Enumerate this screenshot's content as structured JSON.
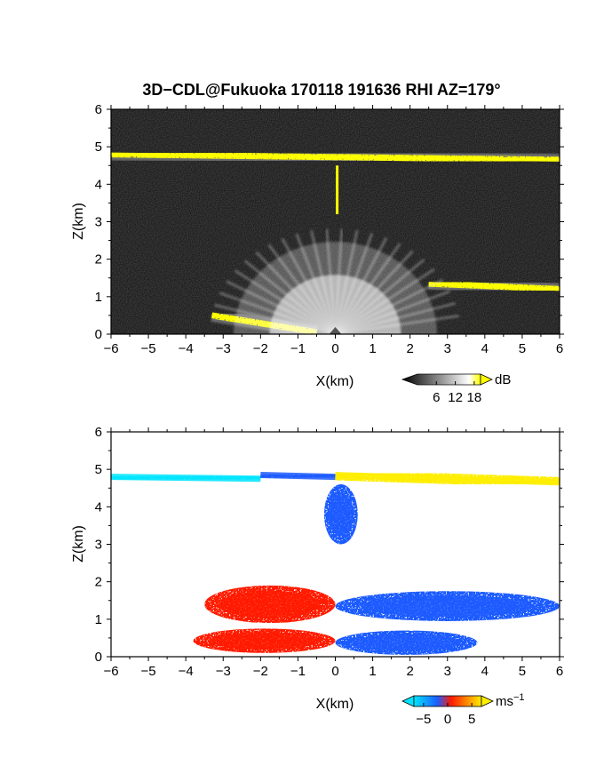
{
  "figure": {
    "title": "3D−CDL@Fukuoka 170118 191636 RHI AZ=179°"
  },
  "chart_data": [
    {
      "type": "heatmap",
      "name": "backscatter-panel",
      "xlabel": "X(km)",
      "ylabel": "Z(km)",
      "xlim": [
        -6,
        6
      ],
      "ylim": [
        0,
        6
      ],
      "xticks": [
        "−6",
        "−5",
        "−4",
        "−3",
        "−2",
        "−1",
        "0",
        "1",
        "2",
        "3",
        "4",
        "5",
        "6"
      ],
      "yticks": [
        "0",
        "1",
        "2",
        "3",
        "4",
        "5",
        "6"
      ],
      "colorbar": {
        "unit": "dB",
        "ticks": [
          "6",
          "12",
          "18"
        ],
        "tick_values": [
          6,
          12,
          18
        ],
        "range": [
          0,
          20
        ],
        "colors": [
          "#000000",
          "#ffffff",
          "#ffff00"
        ]
      },
      "features": [
        {
          "kind": "layer",
          "x": [
            -6,
            6
          ],
          "z": [
            4.8,
            4.65
          ],
          "value_dB": 18
        },
        {
          "kind": "layer",
          "x": [
            2.5,
            6
          ],
          "z": [
            1.35,
            1.2
          ],
          "value_dB": 18
        },
        {
          "kind": "layer",
          "x": [
            -3.3,
            -0.5
          ],
          "z": [
            0.5,
            0.05
          ],
          "value_dB": 18
        },
        {
          "kind": "column",
          "x": 0.05,
          "z": [
            3.2,
            4.5
          ],
          "value_dB": 18
        },
        {
          "kind": "fan",
          "origin": [
            0,
            0
          ],
          "radius_km": 3.2,
          "value_dB": 12
        }
      ]
    },
    {
      "type": "heatmap",
      "name": "velocity-panel",
      "xlabel": "X(km)",
      "ylabel": "Z(km)",
      "xlim": [
        -6,
        6
      ],
      "ylim": [
        0,
        6
      ],
      "xticks": [
        "−6",
        "−5",
        "−4",
        "−3",
        "−2",
        "−1",
        "0",
        "1",
        "2",
        "3",
        "4",
        "5",
        "6"
      ],
      "yticks": [
        "0",
        "1",
        "2",
        "3",
        "4",
        "5",
        "6"
      ],
      "colorbar": {
        "unit": "ms",
        "unit_exponent": "−1",
        "ticks": [
          "−5",
          "0",
          "5"
        ],
        "tick_values": [
          -5,
          0,
          5
        ],
        "range": [
          -7,
          7
        ],
        "colors": [
          "#00e5ff",
          "#1e5bff",
          "#ff1a00",
          "#ffee00"
        ]
      },
      "features": [
        {
          "kind": "layer",
          "x": [
            -6,
            -2
          ],
          "z": [
            4.8,
            4.75
          ],
          "velocity": -4.5
        },
        {
          "kind": "layer",
          "x": [
            -2,
            0
          ],
          "z": [
            4.85,
            4.8
          ],
          "velocity": -2
        },
        {
          "kind": "layer",
          "x": [
            0,
            6
          ],
          "z": [
            4.85,
            4.65
          ],
          "velocity": 3.5
        },
        {
          "kind": "blob",
          "x": [
            -0.3,
            0.6
          ],
          "z": [
            3.0,
            4.6
          ],
          "velocity": -2
        },
        {
          "kind": "blob",
          "x": [
            -3.5,
            0
          ],
          "z": [
            0.9,
            1.9
          ],
          "velocity": 3
        },
        {
          "kind": "blob",
          "x": [
            0,
            6
          ],
          "z": [
            0.95,
            1.75
          ],
          "velocity": -3
        },
        {
          "kind": "blob",
          "x": [
            -3.8,
            0
          ],
          "z": [
            0.1,
            0.75
          ],
          "velocity": 3
        },
        {
          "kind": "blob",
          "x": [
            0,
            3.8
          ],
          "z": [
            0.05,
            0.7
          ],
          "velocity": -3
        }
      ]
    }
  ]
}
